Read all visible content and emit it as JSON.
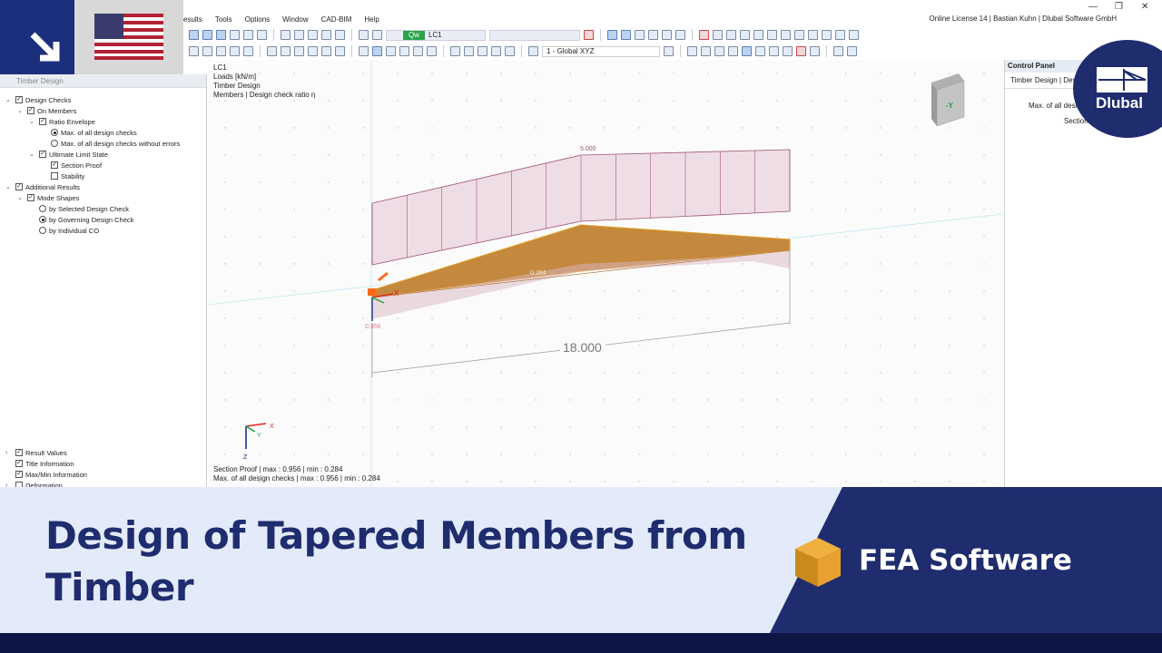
{
  "menu": [
    "esults",
    "Tools",
    "Options",
    "Window",
    "CAD-BIM",
    "Help"
  ],
  "license": "Online License 14 | Bastian Kuhn | Dlubal Software GmbH",
  "toolbar": {
    "load_case_badge": "Qw",
    "load_case": "LC1",
    "view": "1 - Global XYZ"
  },
  "left_panel": {
    "title": "Timber Design",
    "tree": [
      {
        "label": "Design Checks",
        "type": "check",
        "checked": true,
        "level": 0
      },
      {
        "label": "On Members",
        "type": "check",
        "checked": true,
        "level": 1
      },
      {
        "label": "Ratio Envelope",
        "type": "check",
        "checked": true,
        "level": 2
      },
      {
        "label": "Max. of all design checks",
        "type": "radio",
        "checked": true,
        "level": 3
      },
      {
        "label": "Max. of all design checks without errors",
        "type": "radio",
        "checked": false,
        "level": 3
      },
      {
        "label": "Ultimate Limit State",
        "type": "check",
        "checked": true,
        "level": 2
      },
      {
        "label": "Section Proof",
        "type": "check",
        "checked": true,
        "level": 3
      },
      {
        "label": "Stability",
        "type": "check",
        "checked": false,
        "level": 3
      },
      {
        "label": "Additional Results",
        "type": "check",
        "checked": true,
        "level": 0
      },
      {
        "label": "Mode Shapes",
        "type": "check",
        "checked": true,
        "level": 1
      },
      {
        "label": "by Selected Design Check",
        "type": "radio",
        "checked": false,
        "level": 2
      },
      {
        "label": "by Governing Design Check",
        "type": "radio",
        "checked": true,
        "level": 2
      },
      {
        "label": "by Individual CO",
        "type": "radio",
        "checked": false,
        "level": 2
      }
    ],
    "bottom_tree": [
      {
        "label": "Result Values",
        "checked": true
      },
      {
        "label": "Title Information",
        "checked": true
      },
      {
        "label": "Max/Min Information",
        "checked": true
      },
      {
        "label": "Deformation",
        "checked": false
      }
    ]
  },
  "viewport": {
    "info": [
      "LC1",
      "Loads [kN/m]",
      "Timber Design",
      "Members | Design check ratio η"
    ],
    "load_value": "5.000",
    "ratio_min": "0.284",
    "ratio_max": "0.956",
    "dimension": "18.000",
    "cube_face": "-Y",
    "axes": {
      "x": "X",
      "y": "Y",
      "z": "Z"
    },
    "status": [
      "Section Proof | max  : 0.956 | min  : 0.284",
      "Max. of all design checks | max  : 0.956 | min  : 0.284"
    ]
  },
  "control_panel": {
    "title": "Control Panel",
    "subtitle": "Timber Design | Design",
    "row1": "Max. of all desig",
    "row2": "Section"
  },
  "banner": {
    "title": "Design of Tapered Members from Timber",
    "product": "FEA Software",
    "logo": "Dlubal"
  },
  "colors": {
    "brand": "#1f2c6e",
    "banner_bg": "#e3eafa",
    "member": "#c4883e",
    "load": "#a0557a"
  }
}
